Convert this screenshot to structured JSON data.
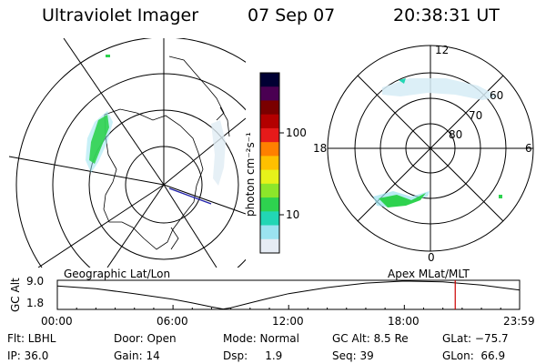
{
  "header": {
    "title": "Ultraviolet Imager",
    "date": "07 Sep 07",
    "time": "20:38:31 UT"
  },
  "left_panel": {
    "caption": "Geographic Lat/Lon"
  },
  "right_panel": {
    "caption": "Apex MLat/MLT",
    "mlt_labels": {
      "top": "12",
      "left": "18",
      "right": "6",
      "bottom": "0"
    },
    "lat_labels": [
      "60",
      "70",
      "80"
    ]
  },
  "colorbar": {
    "unit_label": "photon cm⁻²s⁻¹",
    "ticks": [
      "100",
      "10"
    ],
    "colors": [
      "#000033",
      "#4a0052",
      "#7a0000",
      "#b30000",
      "#e61a1a",
      "#ff8000",
      "#ffc000",
      "#e6f21a",
      "#8ce62a",
      "#2ed24f",
      "#22d6b4",
      "#9be3f0",
      "#e6ecf4"
    ]
  },
  "chart_data": {
    "type": "line",
    "title": "",
    "ylabel": "GC Alt",
    "yticks": [
      "9.0",
      "1.8"
    ],
    "ylim": [
      1.8,
      9.0
    ],
    "xticks": [
      "00:00",
      "06:00",
      "12:00",
      "18:00",
      "23:59"
    ],
    "xlim_hours": [
      0,
      23.98
    ],
    "series": [
      {
        "x_hours": [
          0,
          2,
          4,
          6,
          7,
          8,
          8.6,
          9,
          10,
          11,
          12,
          14,
          16,
          18,
          20,
          22,
          23.98
        ],
        "values": [
          7.6,
          6.9,
          5.7,
          4.3,
          3.4,
          2.4,
          1.9,
          2.2,
          3.4,
          4.6,
          5.7,
          7.2,
          8.3,
          8.8,
          8.6,
          7.8,
          6.6
        ]
      }
    ],
    "current_time_hours": 20.64
  },
  "info": {
    "row1": {
      "filter": "Flt: LBHL",
      "door": "Door: Open",
      "mode": "Mode: Normal",
      "gc_alt": "GC Alt: 8.5 Re",
      "glat": "GLat: −75.7"
    },
    "row2": {
      "ip": "IP: 36.0",
      "gain": "Gain: 14",
      "dsp": "Dsp:     1.9",
      "seq": "Seq: 39",
      "glon": "GLon:  66.9"
    }
  }
}
